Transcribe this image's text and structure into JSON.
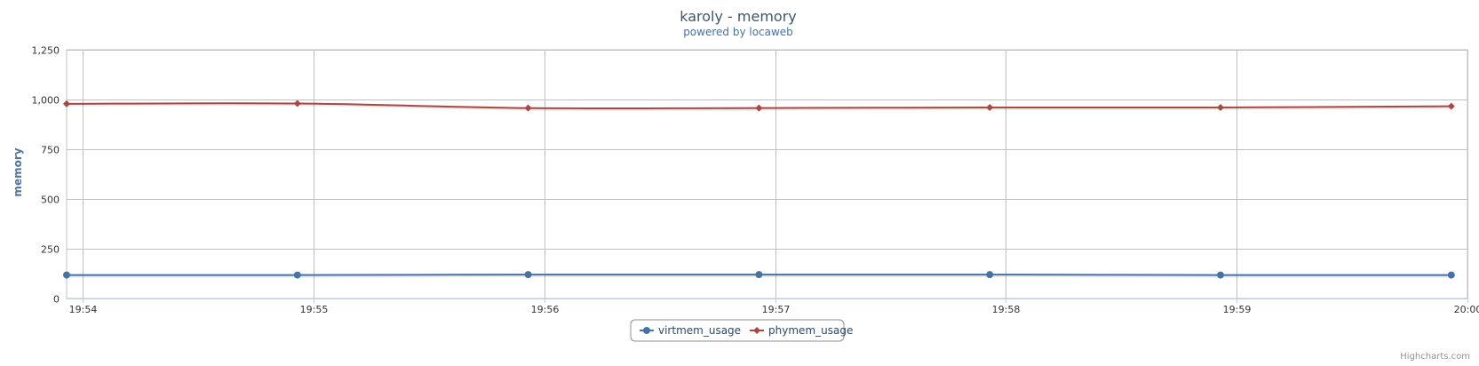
{
  "chart_data": {
    "type": "line",
    "title": "karoly - memory",
    "subtitle": "powered by locaweb",
    "xlabel": "",
    "ylabel": "memory",
    "x_ticks": [
      "19:54",
      "19:55",
      "19:56",
      "19:57",
      "19:58",
      "19:59",
      "20:00"
    ],
    "y_ticks": [
      "0",
      "250",
      "500",
      "750",
      "1,000",
      "1,250"
    ],
    "ylim": [
      0,
      1250
    ],
    "xlim_minutes": [
      -0.07,
      6.0
    ],
    "x": [
      -0.07,
      0.93,
      1.93,
      2.93,
      3.93,
      4.93,
      5.93
    ],
    "series": [
      {
        "name": "virtmem_usage",
        "color": "#4572a7",
        "marker": "circle",
        "values": [
          118,
          118,
          120,
          120,
          120,
          118,
          118
        ]
      },
      {
        "name": "phymem_usage",
        "color": "#aa4643",
        "marker": "diamond",
        "values": [
          978,
          980,
          957,
          957,
          960,
          960,
          966
        ]
      }
    ],
    "grid": true,
    "legend_position": "bottom-center",
    "credits": "Highcharts.com"
  }
}
